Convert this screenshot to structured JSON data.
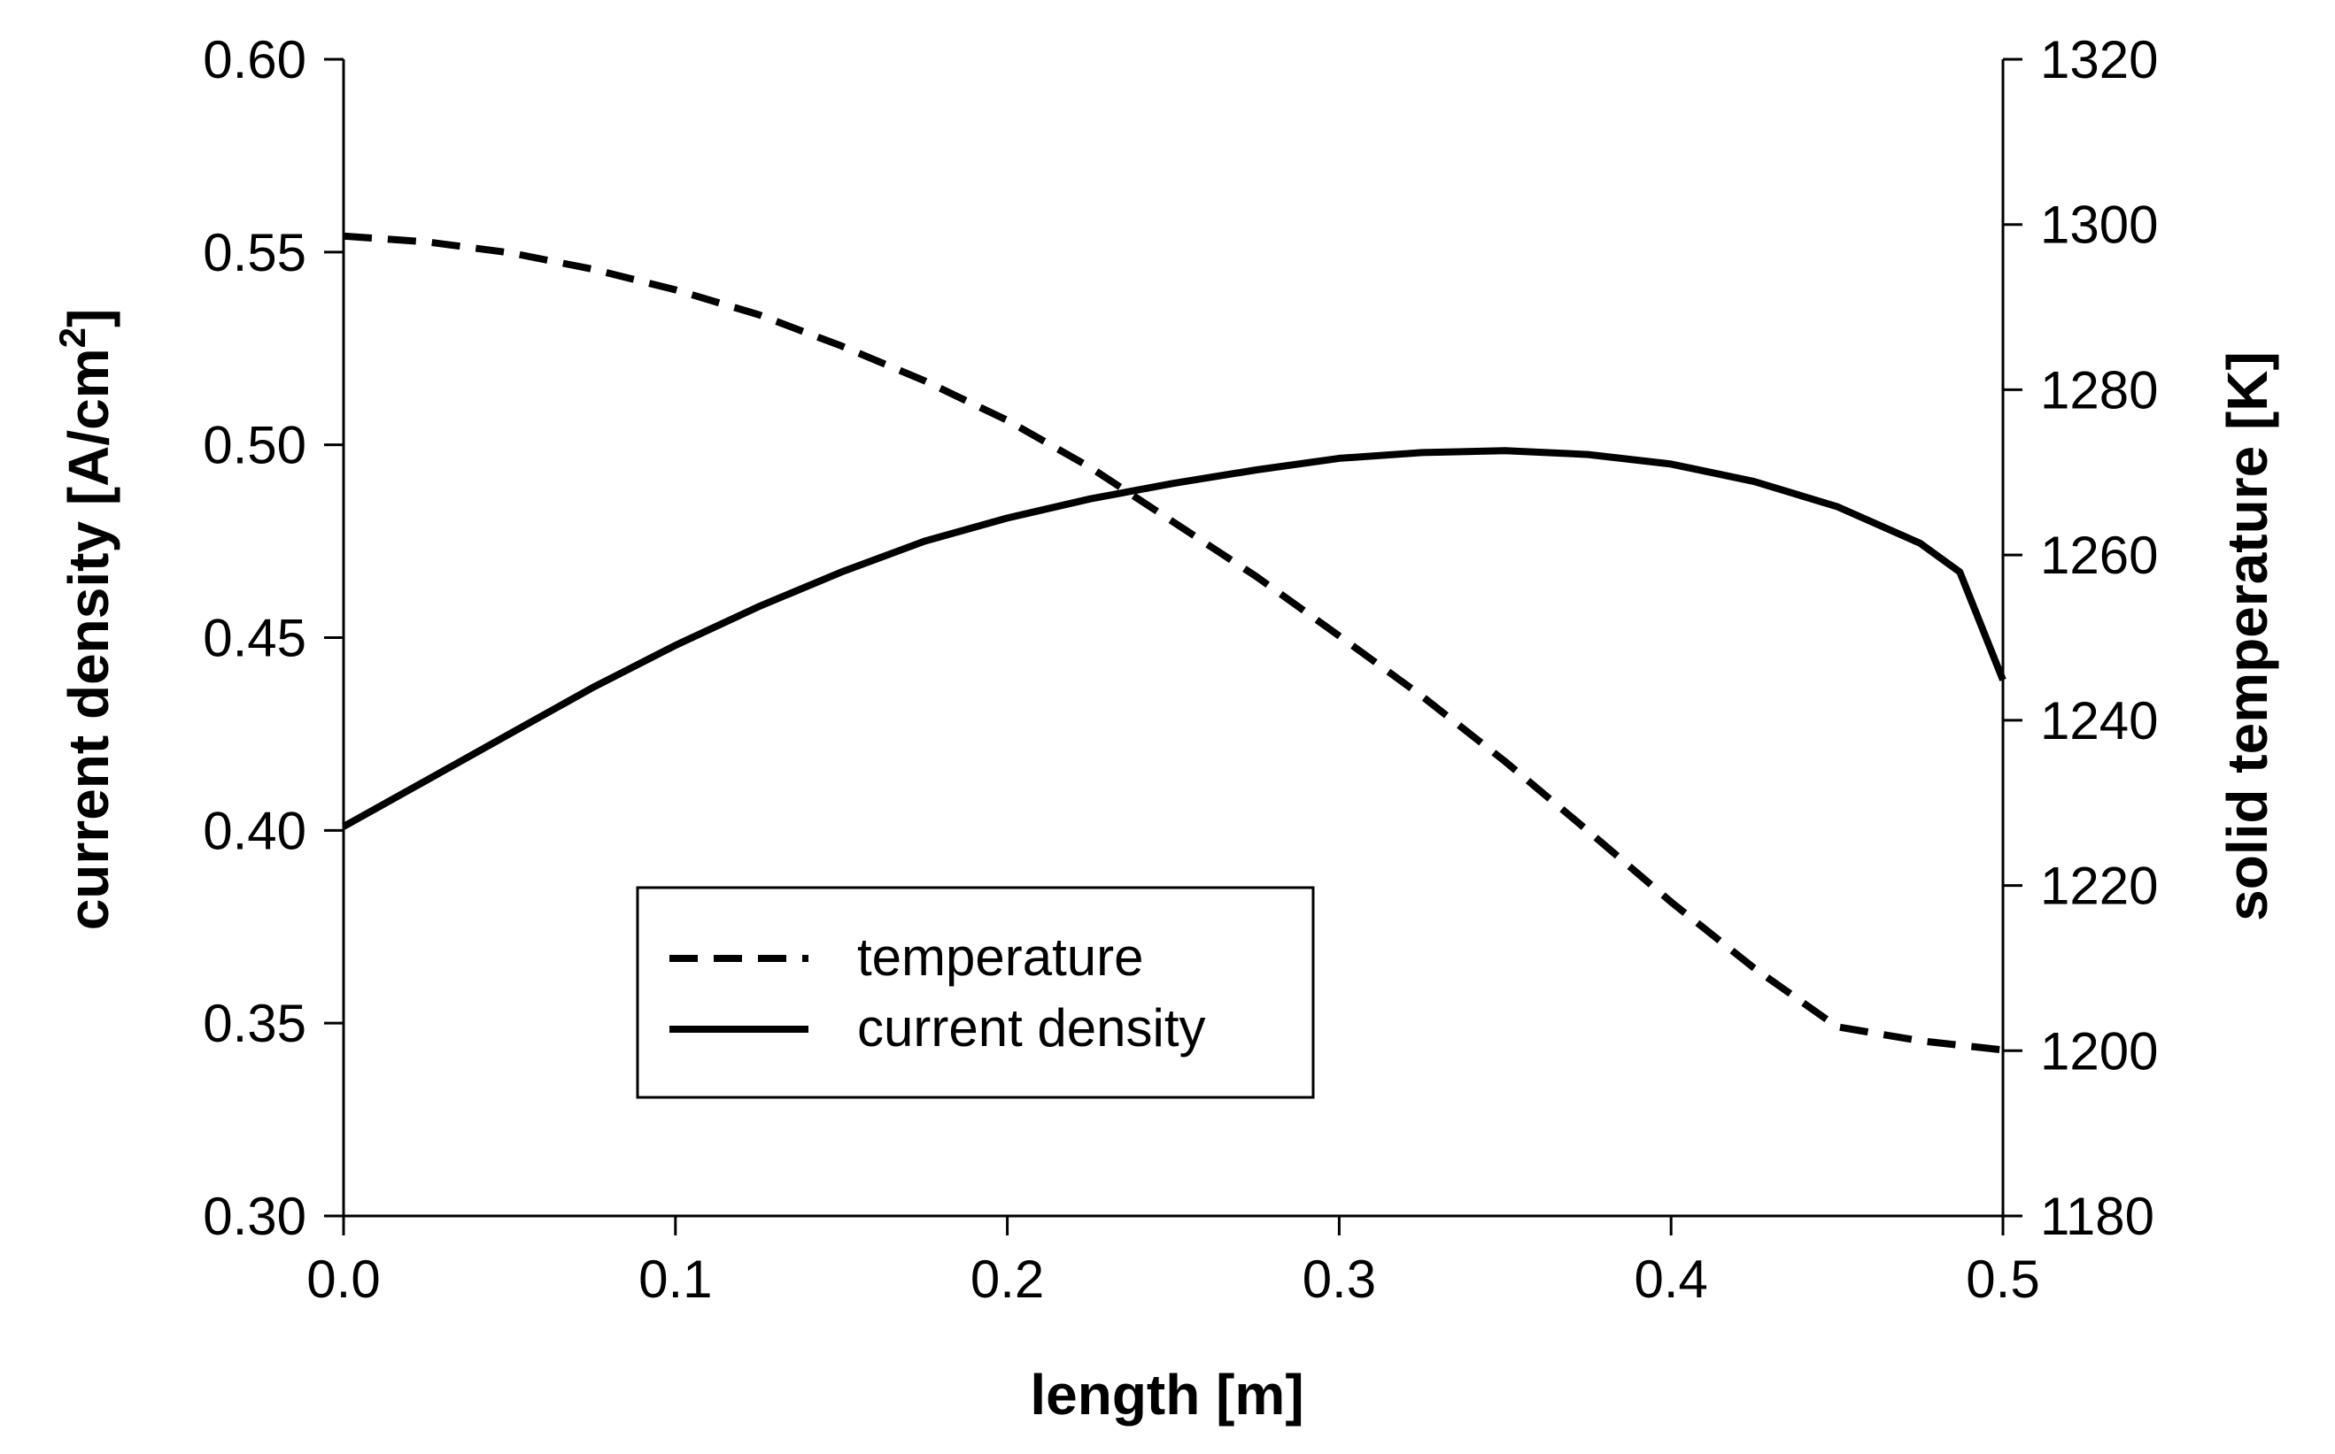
{
  "chart_data": {
    "type": "line",
    "title": "",
    "xlabel": "length [m]",
    "ylabel": "current density [A/cm",
    "ylabel_superscript": "2",
    "ylabel_suffix": "]",
    "y2label": "solid temperature [K]",
    "xlim": [
      0.0,
      0.5
    ],
    "ylim": [
      0.3,
      0.6
    ],
    "y2lim": [
      1180,
      1320
    ],
    "x_ticks": [
      0.0,
      0.1,
      0.2,
      0.3,
      0.4,
      0.5
    ],
    "x_tick_labels": [
      "0.0",
      "0.1",
      "0.2",
      "0.3",
      "0.4",
      "0.5"
    ],
    "y_ticks": [
      0.3,
      0.35,
      0.4,
      0.45,
      0.5,
      0.55,
      0.6
    ],
    "y_tick_labels": [
      "0.30",
      "0.35",
      "0.40",
      "0.45",
      "0.50",
      "0.55",
      "0.60"
    ],
    "y2_ticks": [
      1180,
      1200,
      1220,
      1240,
      1260,
      1280,
      1300,
      1320
    ],
    "y2_tick_labels": [
      "1180",
      "1200",
      "1220",
      "1240",
      "1260",
      "1280",
      "1300",
      "1320"
    ],
    "grid": false,
    "legend_position": "lower-center-left",
    "series": [
      {
        "name": "temperature",
        "axis": "right",
        "style": "dashed",
        "x": [
          0.0,
          0.025,
          0.05,
          0.075,
          0.1,
          0.125,
          0.15,
          0.175,
          0.2,
          0.225,
          0.25,
          0.275,
          0.3,
          0.325,
          0.35,
          0.375,
          0.4,
          0.425,
          0.45,
          0.475,
          0.5
        ],
        "values": [
          1298.6,
          1297.9,
          1296.6,
          1294.6,
          1292.1,
          1289.1,
          1285.3,
          1281.1,
          1276.3,
          1270.6,
          1264.0,
          1257.4,
          1250.2,
          1242.9,
          1235.0,
          1226.6,
          1218.0,
          1210.0,
          1202.9,
          1201.2,
          1200.1
        ]
      },
      {
        "name": "current density",
        "axis": "left",
        "style": "solid",
        "x": [
          0.0,
          0.025,
          0.05,
          0.075,
          0.1,
          0.125,
          0.15,
          0.175,
          0.2,
          0.225,
          0.25,
          0.275,
          0.3,
          0.325,
          0.35,
          0.375,
          0.4,
          0.425,
          0.45,
          0.475,
          0.487,
          0.5
        ],
        "values": [
          0.401,
          0.413,
          0.425,
          0.437,
          0.448,
          0.458,
          0.467,
          0.475,
          0.481,
          0.486,
          0.49,
          0.4935,
          0.4965,
          0.498,
          0.4985,
          0.4975,
          0.495,
          0.4905,
          0.484,
          0.4745,
          0.467,
          0.439
        ]
      }
    ]
  }
}
